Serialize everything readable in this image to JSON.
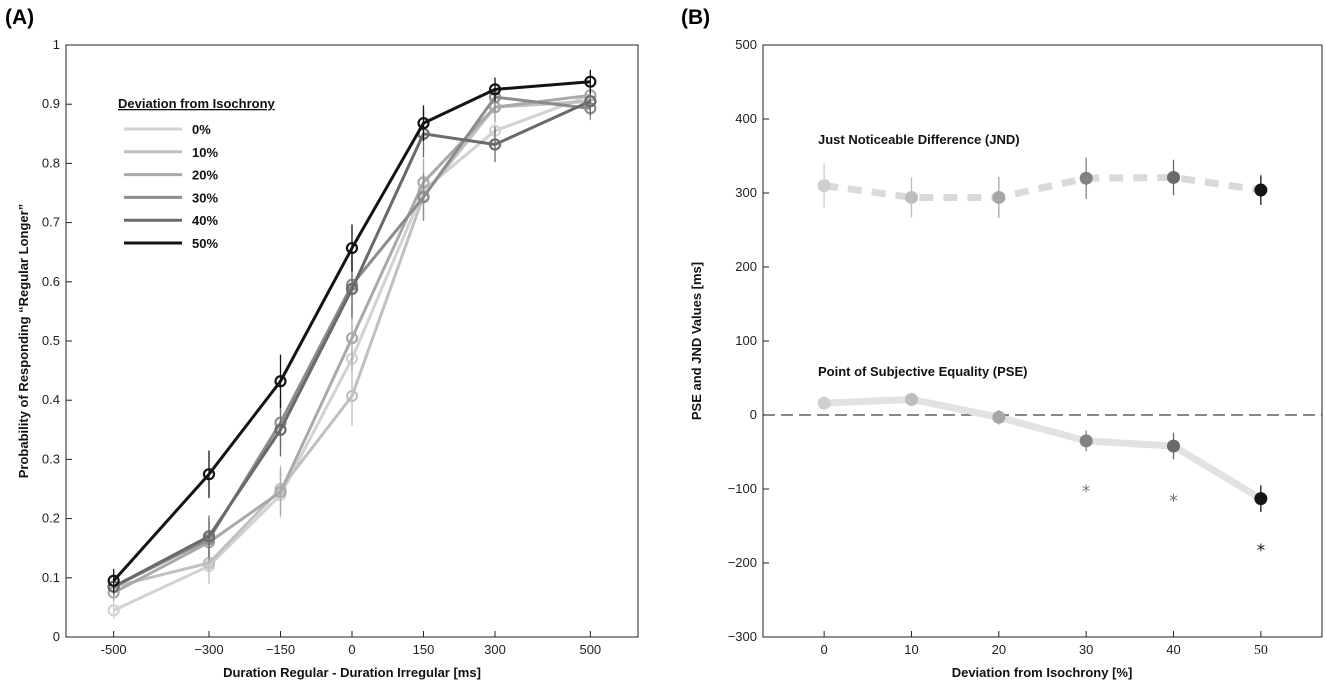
{
  "chart_data": [
    {
      "panel_label": "(A)",
      "type": "line",
      "xlabel": "Duration Regular - Duration Irregular [ms]",
      "ylabel": "Probability of Responding “Regular Longer”",
      "x": [
        -500,
        -300,
        -150,
        0,
        150,
        300,
        500
      ],
      "x_tick_labels": [
        "-500",
        "−300",
        "−150",
        "0",
        "150",
        "300",
        "500"
      ],
      "xlim": [
        -600,
        600
      ],
      "ylim": [
        0,
        1
      ],
      "y_ticks": [
        0,
        0.1,
        0.2,
        0.3,
        0.4,
        0.5,
        0.6,
        0.7,
        0.8,
        0.9,
        1
      ],
      "y_tick_labels": [
        "0",
        "0.1",
        "0.2",
        "0.3",
        "0.4",
        "0.5",
        "0.6",
        "0.7",
        "0.8",
        "0.9",
        "1"
      ],
      "legend_title": "Deviation from Isochrony",
      "legend_position": "top-left",
      "series": [
        {
          "name": "0%",
          "color": "#d2d2d2",
          "values": [
            0.045,
            0.12,
            0.24,
            0.47,
            0.755,
            0.855,
            0.915
          ],
          "err": [
            0.015,
            0.03,
            0.04,
            0.055,
            0.04,
            0.025,
            0.02
          ]
        },
        {
          "name": "10%",
          "color": "#c0c0c0",
          "values": [
            0.085,
            0.125,
            0.25,
            0.407,
            0.745,
            0.895,
            0.905
          ],
          "err": [
            0.015,
            0.035,
            0.04,
            0.05,
            0.04,
            0.025,
            0.02
          ]
        },
        {
          "name": "20%",
          "color": "#a9a9a9",
          "values": [
            0.075,
            0.16,
            0.245,
            0.505,
            0.768,
            0.895,
            0.915
          ],
          "err": [
            0.015,
            0.035,
            0.04,
            0.055,
            0.04,
            0.025,
            0.02
          ]
        },
        {
          "name": "30%",
          "color": "#8c8c8c",
          "values": [
            0.085,
            0.165,
            0.362,
            0.595,
            0.743,
            0.912,
            0.893
          ],
          "err": [
            0.015,
            0.035,
            0.045,
            0.05,
            0.04,
            0.025,
            0.02
          ]
        },
        {
          "name": "40%",
          "color": "#6a6a6a",
          "values": [
            0.085,
            0.17,
            0.35,
            0.588,
            0.85,
            0.832,
            0.905
          ],
          "err": [
            0.015,
            0.035,
            0.045,
            0.05,
            0.04,
            0.03,
            0.025
          ]
        },
        {
          "name": "50%",
          "color": "#141414",
          "values": [
            0.095,
            0.275,
            0.432,
            0.657,
            0.868,
            0.925,
            0.938
          ],
          "err": [
            0.02,
            0.04,
            0.045,
            0.04,
            0.03,
            0.02,
            0.02
          ]
        }
      ]
    },
    {
      "panel_label": "(B)",
      "type": "line",
      "xlabel": "Deviation from Isochrony [%]",
      "ylabel": "PSE and JND Values [ms]",
      "x": [
        0,
        10,
        20,
        30,
        40,
        50
      ],
      "x_tick_labels": [
        "0",
        "10",
        "20",
        "30",
        "40",
        "50"
      ],
      "xlim": [
        -7,
        57
      ],
      "ylim": [
        -300,
        500
      ],
      "y_ticks": [
        -300,
        -200,
        -100,
        0,
        100,
        200,
        300,
        400,
        500
      ],
      "y_tick_labels": [
        "−300",
        "−200",
        "−100",
        "0",
        "100",
        "200",
        "300",
        "400",
        "500"
      ],
      "tick_label_override": {
        "index": 5,
        "font": "serif"
      },
      "reference_line": {
        "y": 0,
        "style": "dashed"
      },
      "point_colors": [
        "#cfcfcf",
        "#bdbdbd",
        "#a6a6a6",
        "#828282",
        "#6a6a6a",
        "#141414"
      ],
      "series": [
        {
          "name": "Just Noticeable Difference (JND)",
          "line_style": "dashed",
          "line_color": "#dadada",
          "values": [
            310,
            294,
            294,
            320,
            321,
            304
          ],
          "err": [
            30,
            27,
            28,
            28,
            24,
            20
          ]
        },
        {
          "name": "Point of Subjective Equality (PSE)",
          "line_style": "solid",
          "line_color": "#e2e2e2",
          "values": [
            16,
            21,
            -3,
            -35,
            -42,
            -113
          ],
          "err": [
            9,
            9,
            10,
            14,
            18,
            18
          ]
        }
      ],
      "significance_markers": [
        {
          "x": 30,
          "y": -100,
          "symbol": "*",
          "color": "#7a7a7a"
        },
        {
          "x": 40,
          "y": -113,
          "symbol": "*",
          "color": "#6a6a6a"
        },
        {
          "x": 50,
          "y": -180,
          "symbol": "*",
          "color": "#141414"
        }
      ]
    }
  ]
}
